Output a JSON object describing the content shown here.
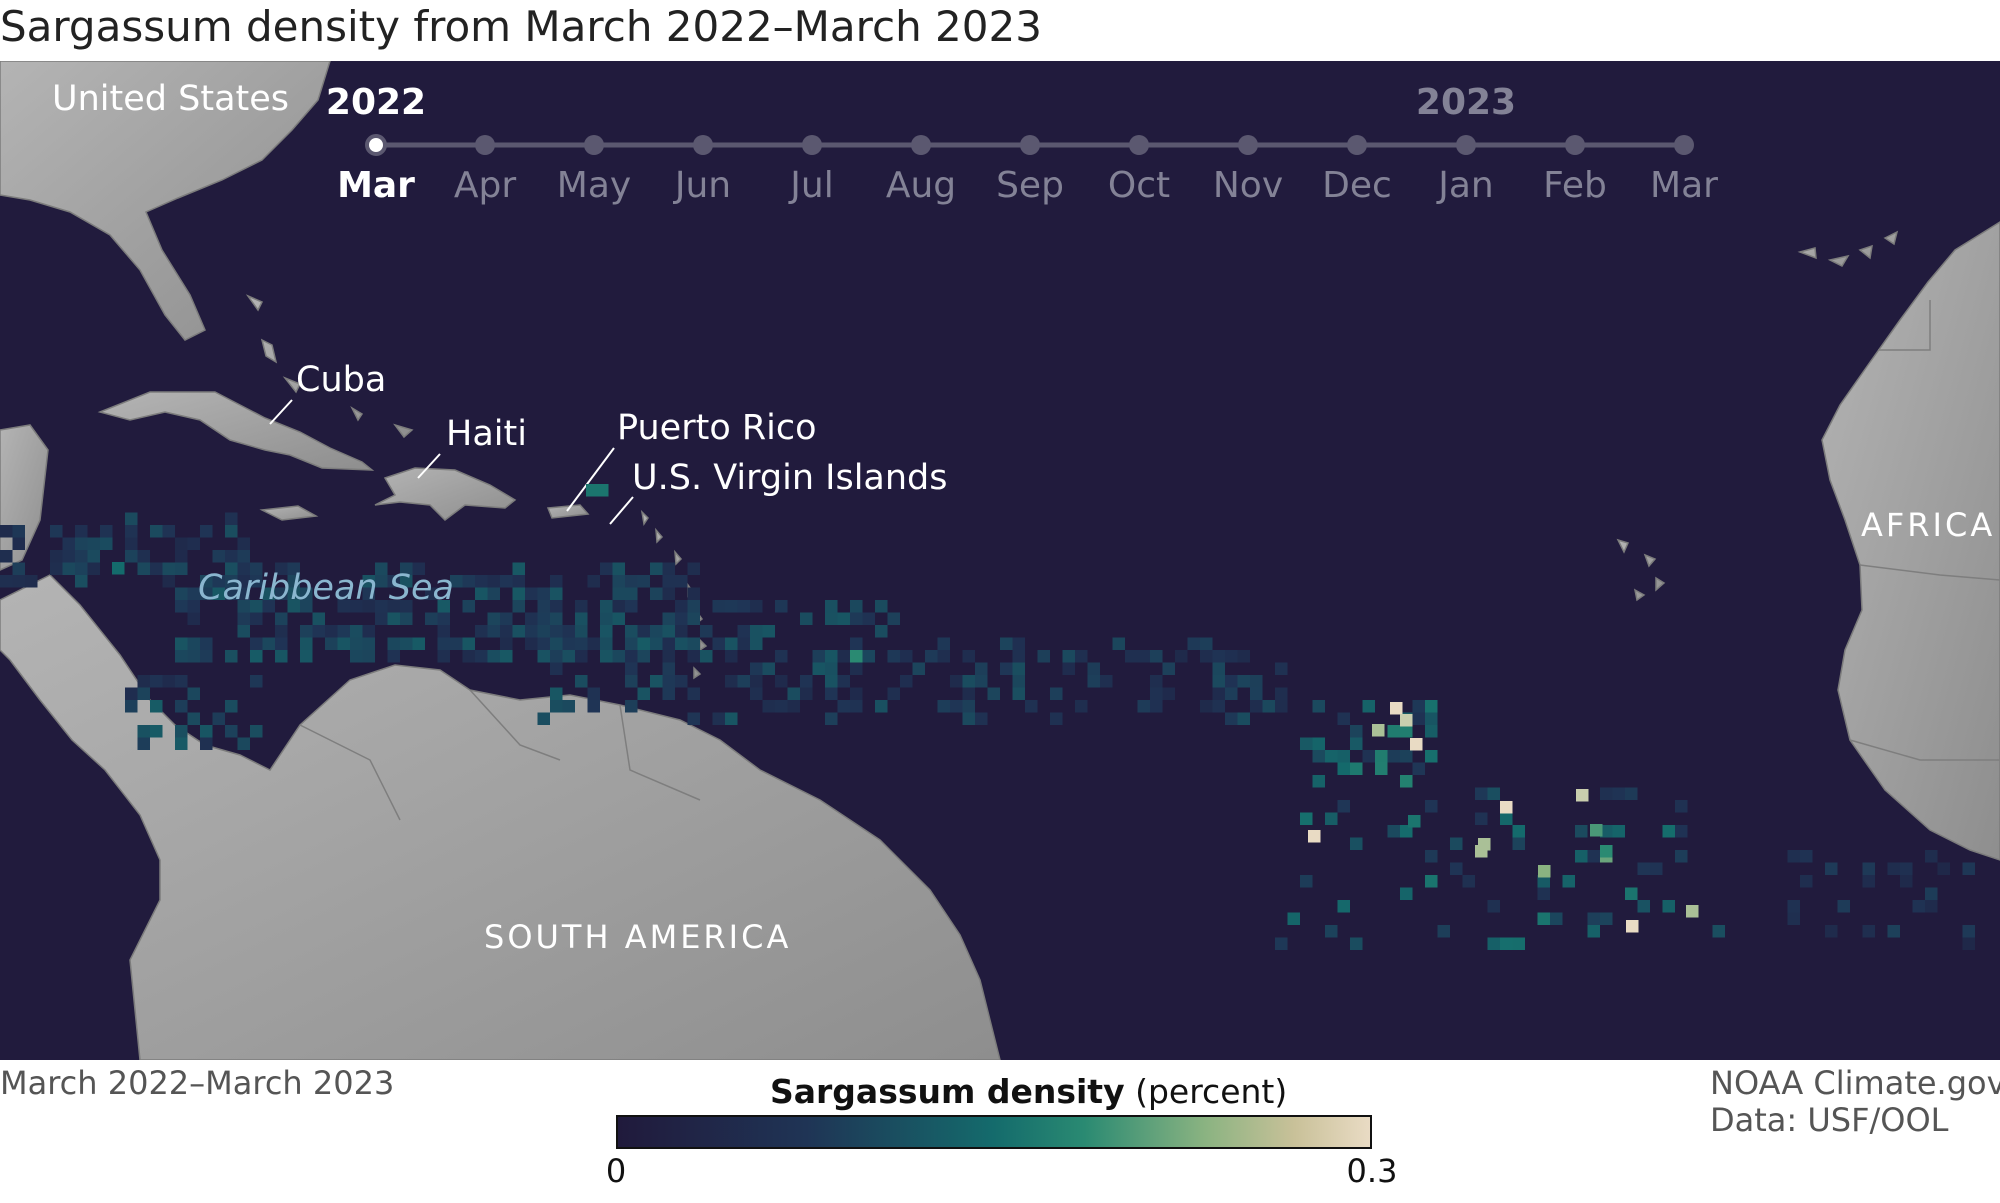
{
  "title": "Sargassum density from March 2022–March 2023",
  "map": {
    "labels": {
      "united_states": "United States",
      "cuba": "Cuba",
      "haiti": "Haiti",
      "puerto_rico": "Puerto Rico",
      "usvi": "U.S. Virgin Islands",
      "caribbean_sea": "Caribbean Sea",
      "south_america": "SOUTH AMERICA",
      "africa": "AFRICA"
    },
    "colors": {
      "ocean": "#211b3d",
      "land": "#9a9a9a",
      "density_low": "#201a3c",
      "density_mid": "#146b6c",
      "density_high": "#e9dbc4"
    },
    "cell_value_scale": "fraction of legend max (0.3 percent)"
  },
  "timeline": {
    "year_start": "2022",
    "year_end": "2023",
    "months": [
      "Mar",
      "Apr",
      "May",
      "Jun",
      "Jul",
      "Aug",
      "Sep",
      "Oct",
      "Nov",
      "Dec",
      "Jan",
      "Feb",
      "Mar"
    ],
    "selected_index": 0
  },
  "footer": {
    "period": "March 2022–March 2023",
    "credit": "NOAA Climate.gov",
    "data_source": "Data: USF/OOL"
  },
  "legend": {
    "title_bold": "Sargassum density",
    "title_unit": " (percent)",
    "min_label": "0",
    "max_label": "0.3"
  },
  "density_regions": [
    {
      "name": "western-caribbean",
      "level": 0.3
    },
    {
      "name": "central-caribbean",
      "level": 0.4
    },
    {
      "name": "eastern-caribbean",
      "level": 0.45
    },
    {
      "name": "central-atlantic-cluster",
      "level": 0.9
    },
    {
      "name": "eastern-atlantic",
      "level": 0.3
    }
  ]
}
